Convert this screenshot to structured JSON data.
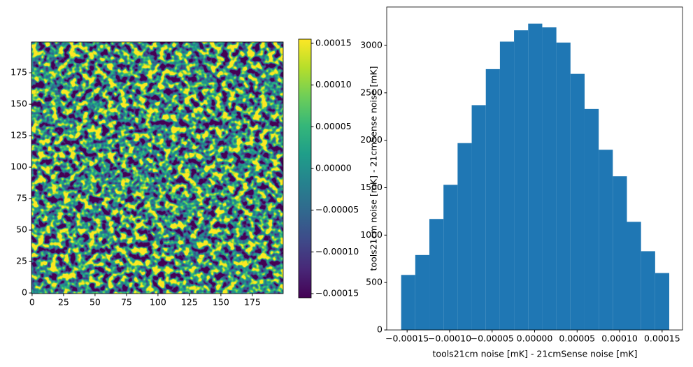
{
  "chart_data": [
    {
      "type": "heatmap",
      "xlim": [
        -0.5,
        199.5
      ],
      "ylim": [
        -0.5,
        199.5
      ],
      "xticks": [
        0,
        25,
        50,
        75,
        100,
        125,
        150,
        175
      ],
      "yticks": [
        0,
        25,
        50,
        75,
        100,
        125,
        150,
        175
      ],
      "colorbar": {
        "colors": [
          "#440154",
          "#482878",
          "#3e4a89",
          "#31688e",
          "#26828e",
          "#1f9e89",
          "#35b779",
          "#6ece58",
          "#b5de2b",
          "#fde725"
        ],
        "ylim": [
          -0.000155,
          0.000155
        ],
        "yticks": [
          {
            "value": -0.00015,
            "label": "−0.00015"
          },
          {
            "value": -0.0001,
            "label": "−0.00010"
          },
          {
            "value": -5e-05,
            "label": "−0.00005"
          },
          {
            "value": 0,
            "label": "0.00000"
          },
          {
            "value": 5e-05,
            "label": "0.00005"
          },
          {
            "value": 0.0001,
            "label": "0.00010"
          },
          {
            "value": 0.00015,
            "label": "0.00015"
          }
        ]
      }
    },
    {
      "type": "histogram",
      "xlabel": "tools21cm noise [mK] - 21cmSense noise [mK]",
      "ylabel": "tools21cm noise [mK] - 21cmSense noise [mK]",
      "color": "#1f77b4",
      "bins": [
        -0.000157,
        -0.0001404,
        -0.0001238,
        -0.0001072,
        -9.06e-05,
        -7.4e-05,
        -5.74e-05,
        -4.08e-05,
        -2.42e-05,
        -7.6e-06,
        9e-06,
        2.56e-05,
        4.22e-05,
        5.88e-05,
        7.54e-05,
        9.2e-05,
        0.0001086,
        0.0001252,
        0.0001418,
        0.0001584
      ],
      "values": [
        580,
        790,
        1170,
        1530,
        1970,
        2370,
        2750,
        3040,
        3160,
        3230,
        3190,
        3030,
        2700,
        2330,
        1900,
        1620,
        1140,
        830,
        600
      ],
      "xlim": [
        -0.000174,
        0.000174
      ],
      "ylim": [
        0,
        3405
      ],
      "xticks": [
        {
          "value": -0.00015,
          "label": "−0.00015"
        },
        {
          "value": -0.0001,
          "label": "−0.00010"
        },
        {
          "value": -5e-05,
          "label": "−0.00005"
        },
        {
          "value": 0,
          "label": "0.00000"
        },
        {
          "value": 5e-05,
          "label": "0.00005"
        },
        {
          "value": 0.0001,
          "label": "0.00010"
        },
        {
          "value": 0.00015,
          "label": "0.00015"
        }
      ],
      "yticks": [
        0,
        500,
        1000,
        1500,
        2000,
        2500,
        3000
      ]
    }
  ]
}
